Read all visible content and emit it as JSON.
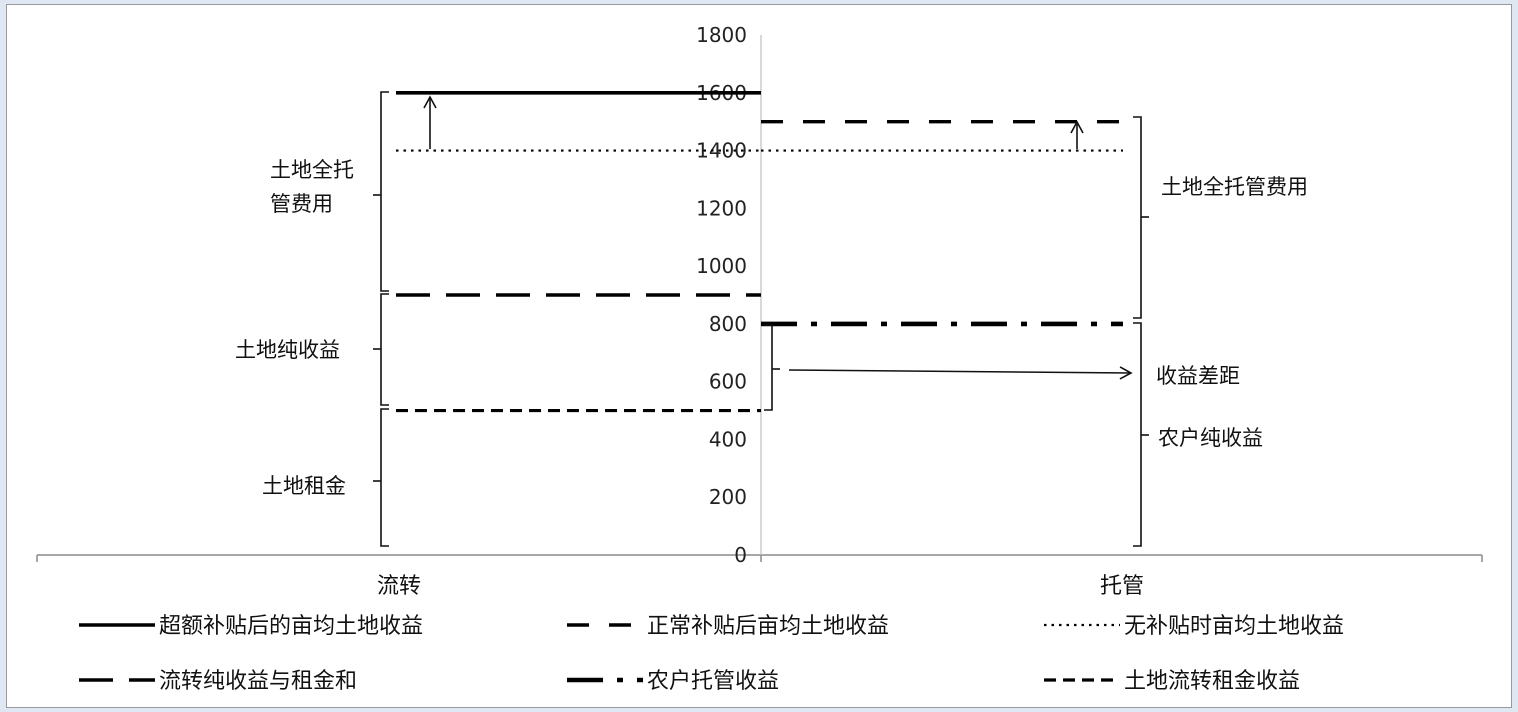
{
  "chart_data": {
    "type": "line",
    "categories": [
      "流转",
      "托管"
    ],
    "ylim": [
      0,
      1800
    ],
    "yticks": [
      0,
      200,
      400,
      600,
      800,
      1000,
      1200,
      1400,
      1600,
      1800
    ],
    "grid": false,
    "legend_position": "bottom",
    "series": [
      {
        "name": "超额补贴后的亩均土地收益",
        "style": "solid",
        "values": [
          1600,
          null
        ]
      },
      {
        "name": "正常补贴后亩均土地收益",
        "style": "dash",
        "values": [
          null,
          1500
        ]
      },
      {
        "name": "无补贴时亩均土地收益",
        "style": "dot",
        "values": [
          1400,
          1400
        ]
      },
      {
        "name": "流转纯收益与租金和",
        "style": "long-dash",
        "values": [
          900,
          null
        ]
      },
      {
        "name": "农户托管收益",
        "style": "dash-dot",
        "values": [
          null,
          800
        ]
      },
      {
        "name": "土地流转租金收益",
        "style": "short-dash",
        "values": [
          500,
          null
        ]
      }
    ],
    "annotations": {
      "left_full_fee_line1": "土地全托",
      "left_full_fee_line2": "管费用",
      "left_net_income": "土地纯收益",
      "left_rent": "土地租金",
      "right_full_fee": "土地全托管费用",
      "income_gap": "收益差距",
      "farmer_net_income": "农户纯收益"
    }
  }
}
